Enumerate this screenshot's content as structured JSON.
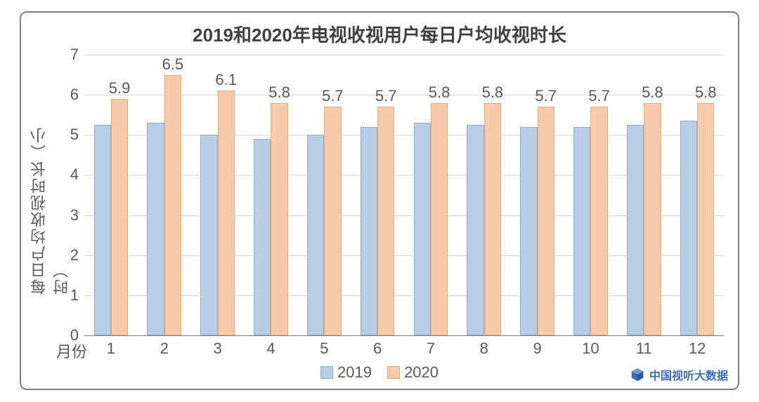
{
  "chart": {
    "type": "bar",
    "title": "2019和2020年电视收视用户每日户均收视时长",
    "title_fontsize": 26,
    "title_color": "#404040",
    "ylabel": "每日户均收视时长（小时）",
    "ylabel_fontsize": 22,
    "xaxis_label": "月份",
    "categories": [
      "1",
      "2",
      "3",
      "4",
      "5",
      "6",
      "7",
      "8",
      "9",
      "10",
      "11",
      "12"
    ],
    "ylim": [
      0,
      7
    ],
    "yticks": [
      0,
      1,
      2,
      3,
      4,
      5,
      6,
      7
    ],
    "tick_fontsize": 22,
    "tick_color": "#595959",
    "grid_color": "#d9d9d9",
    "axis_line_color": "#7f7f7f",
    "background_color": "#ffffff",
    "frame_border_color": "#7f7f7f",
    "frame_border_radius": 10,
    "bar_group_width_ratio": 0.64,
    "series": [
      {
        "name": "2019",
        "fill": "#b9cde5",
        "border": "#8faad0",
        "values": [
          5.25,
          5.3,
          5.0,
          4.9,
          5.0,
          5.2,
          5.3,
          5.25,
          5.2,
          5.2,
          5.25,
          5.35
        ],
        "show_data_labels": false
      },
      {
        "name": "2020",
        "fill": "#f7caac",
        "border": "#e8a978",
        "values": [
          5.9,
          6.5,
          6.1,
          5.8,
          5.7,
          5.7,
          5.8,
          5.8,
          5.7,
          5.7,
          5.8,
          5.8
        ],
        "show_data_labels": true,
        "data_labels": [
          "5.9",
          "6.5",
          "6.1",
          "5.8",
          "5.7",
          "5.7",
          "5.8",
          "5.8",
          "5.7",
          "5.7",
          "5.8",
          "5.8"
        ],
        "data_label_fontsize": 22,
        "data_label_color": "#595959"
      }
    ],
    "legend": {
      "position": "bottom-center",
      "items": [
        {
          "label": "2019",
          "fill": "#b9cde5",
          "border": "#8faad0"
        },
        {
          "label": "2020",
          "fill": "#f7caac",
          "border": "#e8a978"
        }
      ],
      "fontsize": 22
    },
    "watermark": {
      "text": "中国视听大数据",
      "color": "#3b6fb5",
      "icon": "cube-icon",
      "fontsize": 16
    }
  }
}
